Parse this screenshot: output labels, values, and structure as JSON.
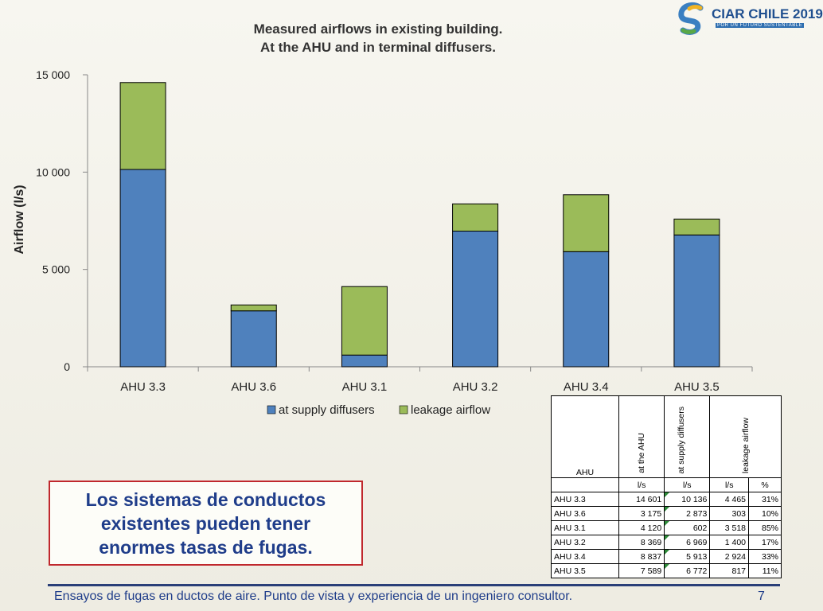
{
  "logo": {
    "name": "CIAR CHILE 2019",
    "tagline": "POR UN FUTURO SUSTENTABLE"
  },
  "chart_data": {
    "type": "bar",
    "stacked": true,
    "title": "Measured airflows in existing building.",
    "subtitle": "At the AHU and in terminal diffusers.",
    "ylabel": "Airflow  (l/s)",
    "xlabel": "",
    "ylim": [
      0,
      15000
    ],
    "yticks": [
      0,
      5000,
      10000,
      15000
    ],
    "ytick_labels": [
      "0",
      "5 000",
      "10 000",
      "15 000"
    ],
    "grid": false,
    "legend_position": "bottom",
    "categories": [
      "AHU 3.3",
      "AHU 3.6",
      "AHU 3.1",
      "AHU 3.2",
      "AHU 3.4",
      "AHU 3.5"
    ],
    "series": [
      {
        "name": "at supply diffusers",
        "color": "#4f81bd",
        "values": [
          10136,
          2873,
          602,
          6969,
          5913,
          6772
        ]
      },
      {
        "name": "leakage airflow",
        "color": "#9bbb59",
        "values": [
          4465,
          303,
          3518,
          1400,
          2924,
          817
        ]
      }
    ]
  },
  "table": {
    "col_ahu": "AHU",
    "col_at_ahu": "at the AHU",
    "col_supply": "at supply diffusers",
    "col_leak": "leakage airflow",
    "unit_ls": "l/s",
    "unit_pct": "%",
    "rows": [
      {
        "ahu": "AHU 3.3",
        "at_ahu": "14 601",
        "supply": "10 136",
        "leak": "4 465",
        "pct": "31%"
      },
      {
        "ahu": "AHU 3.6",
        "at_ahu": "3 175",
        "supply": "2 873",
        "leak": "303",
        "pct": "10%"
      },
      {
        "ahu": "AHU 3.1",
        "at_ahu": "4 120",
        "supply": "602",
        "leak": "3 518",
        "pct": "85%"
      },
      {
        "ahu": "AHU 3.2",
        "at_ahu": "8 369",
        "supply": "6 969",
        "leak": "1 400",
        "pct": "17%"
      },
      {
        "ahu": "AHU 3.4",
        "at_ahu": "8 837",
        "supply": "5 913",
        "leak": "2 924",
        "pct": "33%"
      },
      {
        "ahu": "AHU 3.5",
        "at_ahu": "7 589",
        "supply": "6 772",
        "leak": "817",
        "pct": "11%"
      }
    ]
  },
  "callout": {
    "line1": "Los sistemas de conductos",
    "line2": "existentes pueden tener",
    "line3": "enormes tasas de fugas."
  },
  "footer": {
    "text": "Ensayos de fugas en ductos de aire. Punto de vista y experiencia de un ingeniero consultor.",
    "page": "7"
  }
}
